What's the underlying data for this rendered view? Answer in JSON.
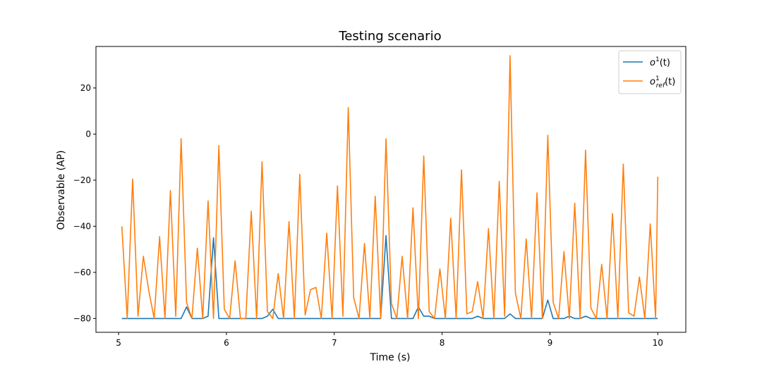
{
  "chart_data": {
    "type": "line",
    "title": "Testing scenario",
    "xlabel": "Time (s)",
    "ylabel": "Observable (AP)",
    "xlim": [
      4.79,
      10.26
    ],
    "ylim": [
      -86,
      38
    ],
    "xticks": [
      5,
      6,
      7,
      8,
      9,
      10
    ],
    "xtick_labels": [
      "5",
      "6",
      "7",
      "8",
      "9",
      "10"
    ],
    "yticks": [
      -80,
      -60,
      -40,
      -20,
      0,
      20
    ],
    "ytick_labels": [
      "−80",
      "−60",
      "−40",
      "−20",
      "0",
      "20"
    ],
    "grid": false,
    "legend": {
      "placement": "top-right"
    },
    "series": [
      {
        "name": "o¹(t)",
        "name_base": "o",
        "name_sup": "1",
        "name_sub": "",
        "name_tail": "(t)",
        "color": "#1f77b4",
        "points": [
          [
            5.03,
            -80
          ],
          [
            5.08,
            -80
          ],
          [
            5.13,
            -80
          ],
          [
            5.18,
            -80
          ],
          [
            5.23,
            -80
          ],
          [
            5.28,
            -80
          ],
          [
            5.33,
            -80
          ],
          [
            5.38,
            -80
          ],
          [
            5.43,
            -80
          ],
          [
            5.48,
            -80
          ],
          [
            5.53,
            -80
          ],
          [
            5.58,
            -80
          ],
          [
            5.63,
            -75
          ],
          [
            5.68,
            -80
          ],
          [
            5.73,
            -80
          ],
          [
            5.78,
            -80
          ],
          [
            5.83,
            -79
          ],
          [
            5.88,
            -45
          ],
          [
            5.93,
            -80
          ],
          [
            5.98,
            -80
          ],
          [
            6.03,
            -80
          ],
          [
            6.08,
            -80
          ],
          [
            6.13,
            -80
          ],
          [
            6.18,
            -80
          ],
          [
            6.23,
            -80
          ],
          [
            6.28,
            -80
          ],
          [
            6.33,
            -80
          ],
          [
            6.38,
            -79
          ],
          [
            6.43,
            -76
          ],
          [
            6.48,
            -80
          ],
          [
            6.53,
            -80
          ],
          [
            6.58,
            -80
          ],
          [
            6.63,
            -80
          ],
          [
            6.68,
            -80
          ],
          [
            6.73,
            -80
          ],
          [
            6.78,
            -80
          ],
          [
            6.83,
            -80
          ],
          [
            6.88,
            -80
          ],
          [
            6.93,
            -80
          ],
          [
            6.98,
            -80
          ],
          [
            7.03,
            -80
          ],
          [
            7.08,
            -80
          ],
          [
            7.13,
            -80
          ],
          [
            7.18,
            -80
          ],
          [
            7.23,
            -80
          ],
          [
            7.28,
            -80
          ],
          [
            7.33,
            -80
          ],
          [
            7.38,
            -80
          ],
          [
            7.43,
            -80
          ],
          [
            7.48,
            -44
          ],
          [
            7.53,
            -80
          ],
          [
            7.58,
            -80
          ],
          [
            7.63,
            -80
          ],
          [
            7.68,
            -80
          ],
          [
            7.73,
            -80
          ],
          [
            7.78,
            -75
          ],
          [
            7.83,
            -79
          ],
          [
            7.88,
            -79
          ],
          [
            7.93,
            -80
          ],
          [
            7.98,
            -80
          ],
          [
            8.03,
            -80
          ],
          [
            8.08,
            -80
          ],
          [
            8.13,
            -80
          ],
          [
            8.18,
            -80
          ],
          [
            8.23,
            -80
          ],
          [
            8.28,
            -80
          ],
          [
            8.33,
            -79
          ],
          [
            8.38,
            -80
          ],
          [
            8.43,
            -80
          ],
          [
            8.48,
            -80
          ],
          [
            8.53,
            -80
          ],
          [
            8.58,
            -80
          ],
          [
            8.63,
            -78
          ],
          [
            8.68,
            -80
          ],
          [
            8.73,
            -80
          ],
          [
            8.78,
            -80
          ],
          [
            8.83,
            -80
          ],
          [
            8.88,
            -80
          ],
          [
            8.93,
            -80
          ],
          [
            8.98,
            -72
          ],
          [
            9.03,
            -80
          ],
          [
            9.08,
            -80
          ],
          [
            9.13,
            -80
          ],
          [
            9.18,
            -79
          ],
          [
            9.23,
            -80
          ],
          [
            9.28,
            -80
          ],
          [
            9.33,
            -79
          ],
          [
            9.38,
            -80
          ],
          [
            9.43,
            -80
          ],
          [
            9.48,
            -80
          ],
          [
            9.53,
            -80
          ],
          [
            9.58,
            -80
          ],
          [
            9.63,
            -80
          ],
          [
            9.68,
            -80
          ],
          [
            9.73,
            -80
          ],
          [
            9.78,
            -80
          ],
          [
            9.83,
            -80
          ],
          [
            9.88,
            -80
          ],
          [
            9.93,
            -80
          ],
          [
            10.0,
            -80
          ]
        ]
      },
      {
        "name": "o¹ref(t)",
        "name_base": "o",
        "name_sup": "1",
        "name_sub": "ref",
        "name_tail": "(t)",
        "color": "#ff7f0e",
        "points": [
          [
            5.03,
            -40
          ],
          [
            5.08,
            -80
          ],
          [
            5.13,
            -19.5
          ],
          [
            5.18,
            -79
          ],
          [
            5.23,
            -53
          ],
          [
            5.28,
            -68
          ],
          [
            5.33,
            -80
          ],
          [
            5.38,
            -44.5
          ],
          [
            5.43,
            -80
          ],
          [
            5.48,
            -24.5
          ],
          [
            5.53,
            -79
          ],
          [
            5.58,
            -2
          ],
          [
            5.63,
            -73
          ],
          [
            5.68,
            -80
          ],
          [
            5.73,
            -49.5
          ],
          [
            5.78,
            -80
          ],
          [
            5.83,
            -29
          ],
          [
            5.88,
            -80
          ],
          [
            5.93,
            -5
          ],
          [
            5.98,
            -76
          ],
          [
            6.03,
            -80
          ],
          [
            6.08,
            -55
          ],
          [
            6.13,
            -80
          ],
          [
            6.18,
            -80
          ],
          [
            6.23,
            -33.5
          ],
          [
            6.28,
            -80
          ],
          [
            6.33,
            -12
          ],
          [
            6.38,
            -77
          ],
          [
            6.43,
            -80
          ],
          [
            6.48,
            -60.5
          ],
          [
            6.53,
            -80
          ],
          [
            6.58,
            -38
          ],
          [
            6.63,
            -80
          ],
          [
            6.68,
            -17.5
          ],
          [
            6.73,
            -78.5
          ],
          [
            6.78,
            -67.5
          ],
          [
            6.83,
            -66.5
          ],
          [
            6.88,
            -80
          ],
          [
            6.93,
            -43
          ],
          [
            6.98,
            -80
          ],
          [
            7.03,
            -22.5
          ],
          [
            7.08,
            -79
          ],
          [
            7.13,
            11.5
          ],
          [
            7.18,
            -71
          ],
          [
            7.23,
            -80
          ],
          [
            7.28,
            -47.5
          ],
          [
            7.33,
            -80
          ],
          [
            7.38,
            -27
          ],
          [
            7.43,
            -80
          ],
          [
            7.48,
            -2
          ],
          [
            7.53,
            -73.5
          ],
          [
            7.58,
            -80
          ],
          [
            7.63,
            -53
          ],
          [
            7.68,
            -80
          ],
          [
            7.73,
            -32
          ],
          [
            7.78,
            -80
          ],
          [
            7.83,
            -9.5
          ],
          [
            7.88,
            -77
          ],
          [
            7.93,
            -80
          ],
          [
            7.98,
            -58.5
          ],
          [
            8.03,
            -80
          ],
          [
            8.08,
            -36.5
          ],
          [
            8.13,
            -80
          ],
          [
            8.18,
            -15.5
          ],
          [
            8.23,
            -78
          ],
          [
            8.28,
            -77
          ],
          [
            8.33,
            -64
          ],
          [
            8.38,
            -80
          ],
          [
            8.43,
            -41
          ],
          [
            8.48,
            -80
          ],
          [
            8.53,
            -20.5
          ],
          [
            8.58,
            -79
          ],
          [
            8.63,
            34
          ],
          [
            8.68,
            -69
          ],
          [
            8.73,
            -80
          ],
          [
            8.78,
            -45.5
          ],
          [
            8.83,
            -80
          ],
          [
            8.88,
            -25.5
          ],
          [
            8.93,
            -80
          ],
          [
            8.98,
            -0.5
          ],
          [
            9.03,
            -73
          ],
          [
            9.08,
            -80
          ],
          [
            9.13,
            -51
          ],
          [
            9.18,
            -80
          ],
          [
            9.23,
            -30
          ],
          [
            9.28,
            -80
          ],
          [
            9.33,
            -7
          ],
          [
            9.38,
            -75.5
          ],
          [
            9.43,
            -80
          ],
          [
            9.48,
            -56.5
          ],
          [
            9.53,
            -80
          ],
          [
            9.58,
            -34.5
          ],
          [
            9.63,
            -80
          ],
          [
            9.68,
            -13
          ],
          [
            9.73,
            -77.5
          ],
          [
            9.78,
            -79
          ],
          [
            9.83,
            -62
          ],
          [
            9.88,
            -80
          ],
          [
            9.93,
            -39
          ],
          [
            9.98,
            -80
          ],
          [
            10.0,
            -18.5
          ]
        ]
      }
    ]
  }
}
